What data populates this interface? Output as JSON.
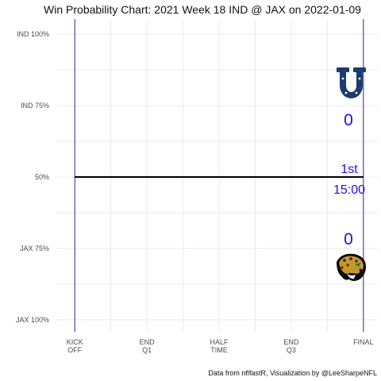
{
  "chart_data": {
    "type": "line",
    "title": "Win Probability Chart: 2021 Week 18 IND @ JAX on 2022-01-09",
    "xlabel": "",
    "ylabel": "",
    "x_ticks": [
      {
        "line1": "KICK",
        "line2": "OFF",
        "value": 0
      },
      {
        "line1": "END",
        "line2": "Q1",
        "value": 900
      },
      {
        "line1": "HALF",
        "line2": "TIME",
        "value": 1800
      },
      {
        "line1": "END",
        "line2": "Q3",
        "value": 2700
      },
      {
        "line1": "FINAL",
        "line2": "",
        "value": 3600
      }
    ],
    "y_ticks": [
      {
        "label": "IND 100%",
        "value": 1.0
      },
      {
        "label": "IND 75%",
        "value": 0.75
      },
      {
        "label": "50%",
        "value": 0.5
      },
      {
        "label": "JAX 75%",
        "value": 0.25
      },
      {
        "label": "JAX 100%",
        "value": 0.0
      }
    ],
    "xlim": [
      -240,
      3780
    ],
    "ylim": [
      0,
      1
    ],
    "grid": true,
    "series": [
      {
        "x": [
          0,
          3600
        ],
        "y": [
          0.5,
          0.5
        ],
        "color": "#000000"
      }
    ],
    "vlines": [
      0,
      3600
    ],
    "vline_color": "#2b2b9a",
    "home_team": {
      "abbr": "IND",
      "score": "0",
      "logo_icon": "colts-horseshoe-icon",
      "logo_color": "#1d3b6e"
    },
    "away_team": {
      "abbr": "JAX",
      "score": "0",
      "logo_icon": "jaguars-head-icon"
    },
    "clock": {
      "quarter": "1st",
      "time": "15:00"
    },
    "annotation_color": "#1f10e8",
    "caption": "Data from nflfastR, Visualization by @LeeSharpeNFL"
  }
}
